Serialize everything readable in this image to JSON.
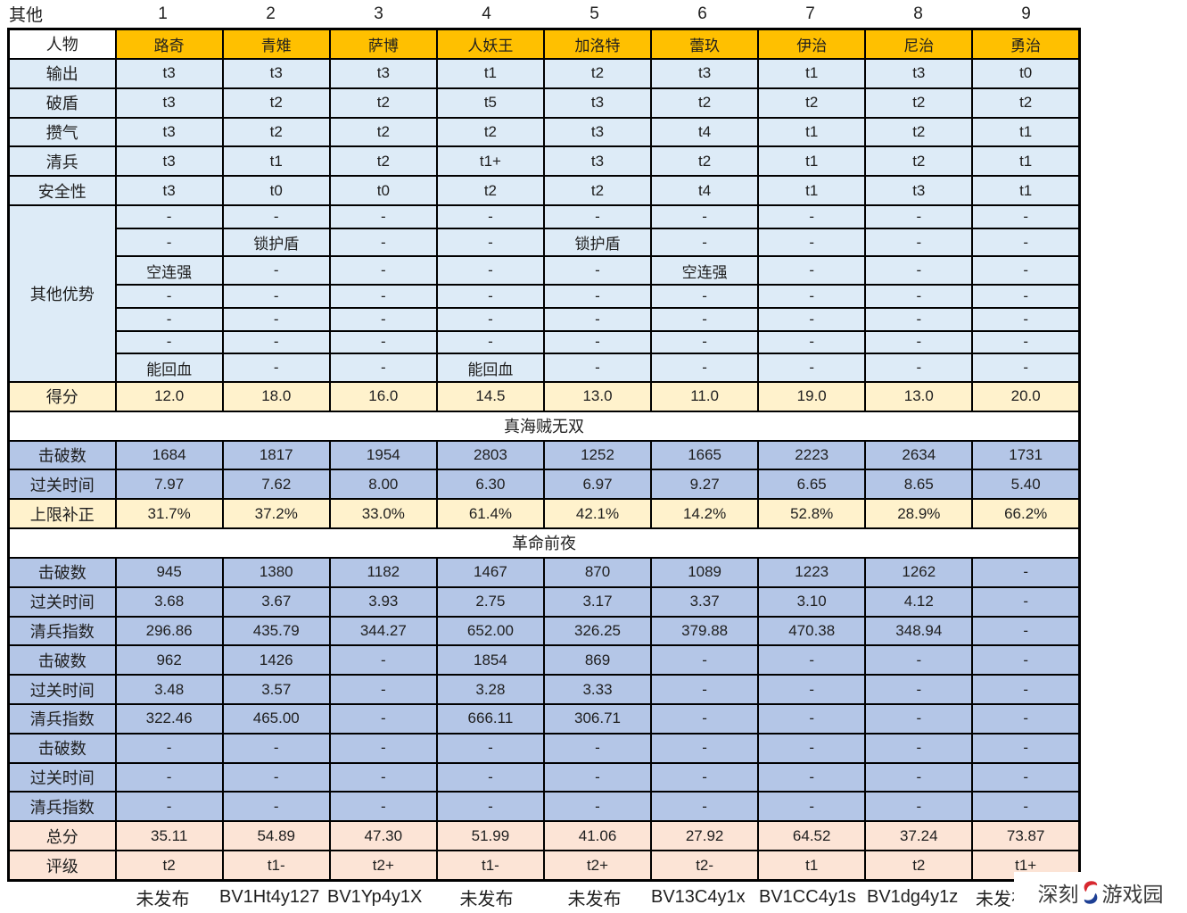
{
  "watermark": {
    "left": "深刻",
    "right": "游戏园"
  },
  "colors": {
    "header_orange": "#FFC000",
    "row_light_blue": "#DDEBF7",
    "row_medium_blue": "#B4C6E7",
    "row_light_yellow": "#FFF2CC",
    "row_light_pink": "#FCE4D6",
    "watermark_red": "#D7282F",
    "watermark_blue": "#1D3F94"
  },
  "chart_data": {
    "type": "table",
    "header_row": {
      "label": "其他",
      "column_numbers": [
        "1",
        "2",
        "3",
        "4",
        "5",
        "6",
        "7",
        "8",
        "9"
      ]
    },
    "character_row_label": "人物",
    "characters": [
      "路奇",
      "青雉",
      "萨博",
      "人妖王",
      "加洛特",
      "蕾玖",
      "伊治",
      "尼治",
      "勇治"
    ],
    "stat_rows": [
      {
        "label": "输出",
        "values": [
          "t3",
          "t3",
          "t3",
          "t1",
          "t2",
          "t3",
          "t1",
          "t3",
          "t0"
        ]
      },
      {
        "label": "破盾",
        "values": [
          "t3",
          "t2",
          "t2",
          "t5",
          "t3",
          "t2",
          "t2",
          "t2",
          "t2"
        ]
      },
      {
        "label": "攒气",
        "values": [
          "t3",
          "t2",
          "t2",
          "t2",
          "t3",
          "t4",
          "t1",
          "t2",
          "t1"
        ]
      },
      {
        "label": "清兵",
        "values": [
          "t3",
          "t1",
          "t2",
          "t1+",
          "t3",
          "t2",
          "t1",
          "t2",
          "t1"
        ]
      },
      {
        "label": "安全性",
        "values": [
          "t3",
          "t0",
          "t0",
          "t2",
          "t2",
          "t4",
          "t1",
          "t3",
          "t1"
        ]
      }
    ],
    "other_advantages": {
      "label": "其他优势",
      "rows": [
        [
          "-",
          "-",
          "-",
          "-",
          "-",
          "-",
          "-",
          "-",
          "-"
        ],
        [
          "-",
          "锁护盾",
          "-",
          "-",
          "锁护盾",
          "-",
          "-",
          "-",
          "-"
        ],
        [
          "空连强",
          "-",
          "-",
          "-",
          "-",
          "空连强",
          "-",
          "-",
          "-"
        ],
        [
          "-",
          "-",
          "-",
          "-",
          "-",
          "-",
          "-",
          "-",
          "-"
        ],
        [
          "-",
          "-",
          "-",
          "-",
          "-",
          "-",
          "-",
          "-",
          "-"
        ],
        [
          "-",
          "-",
          "-",
          "-",
          "-",
          "-",
          "-",
          "-",
          "-"
        ],
        [
          "能回血",
          "-",
          "-",
          "能回血",
          "-",
          "-",
          "-",
          "-",
          "-"
        ]
      ]
    },
    "score_row": {
      "label": "得分",
      "values": [
        "12.0",
        "18.0",
        "16.0",
        "14.5",
        "13.0",
        "11.0",
        "19.0",
        "13.0",
        "20.0"
      ]
    },
    "sections": [
      {
        "title": "真海贼无双",
        "rows": [
          {
            "label": "击破数",
            "style": "mblue",
            "values": [
              "1684",
              "1817",
              "1954",
              "2803",
              "1252",
              "1665",
              "2223",
              "2634",
              "1731"
            ]
          },
          {
            "label": "过关时间",
            "style": "mblue",
            "values": [
              "7.97",
              "7.62",
              "8.00",
              "6.30",
              "6.97",
              "9.27",
              "6.65",
              "8.65",
              "5.40"
            ]
          },
          {
            "label": "上限补正",
            "style": "yellow",
            "values": [
              "31.7%",
              "37.2%",
              "33.0%",
              "61.4%",
              "42.1%",
              "14.2%",
              "52.8%",
              "28.9%",
              "66.2%"
            ]
          }
        ]
      },
      {
        "title": "革命前夜",
        "groups": [
          [
            {
              "label": "击破数",
              "values": [
                "945",
                "1380",
                "1182",
                "1467",
                "870",
                "1089",
                "1223",
                "1262",
                "-"
              ]
            },
            {
              "label": "过关时间",
              "values": [
                "3.68",
                "3.67",
                "3.93",
                "2.75",
                "3.17",
                "3.37",
                "3.10",
                "4.12",
                "-"
              ]
            },
            {
              "label": "清兵指数",
              "values": [
                "296.86",
                "435.79",
                "344.27",
                "652.00",
                "326.25",
                "379.88",
                "470.38",
                "348.94",
                "-"
              ]
            }
          ],
          [
            {
              "label": "击破数",
              "values": [
                "962",
                "1426",
                "-",
                "1854",
                "869",
                "-",
                "-",
                "-",
                "-"
              ]
            },
            {
              "label": "过关时间",
              "values": [
                "3.48",
                "3.57",
                "-",
                "3.28",
                "3.33",
                "-",
                "-",
                "-",
                "-"
              ]
            },
            {
              "label": "清兵指数",
              "values": [
                "322.46",
                "465.00",
                "-",
                "666.11",
                "306.71",
                "-",
                "-",
                "-",
                "-"
              ]
            }
          ],
          [
            {
              "label": "击破数",
              "values": [
                "-",
                "-",
                "-",
                "-",
                "-",
                "-",
                "-",
                "-",
                "-"
              ]
            },
            {
              "label": "过关时间",
              "values": [
                "-",
                "-",
                "-",
                "-",
                "-",
                "-",
                "-",
                "-",
                "-"
              ]
            },
            {
              "label": "清兵指数",
              "values": [
                "-",
                "-",
                "-",
                "-",
                "-",
                "-",
                "-",
                "-",
                "-"
              ]
            }
          ]
        ]
      }
    ],
    "total_row": {
      "label": "总分",
      "values": [
        "35.11",
        "54.89",
        "47.30",
        "51.99",
        "41.06",
        "27.92",
        "64.52",
        "37.24",
        "73.87"
      ]
    },
    "grade_row": {
      "label": "评级",
      "values": [
        "t2",
        "t1-",
        "t2+",
        "t1-",
        "t2+",
        "t2-",
        "t1",
        "t2",
        "t1+"
      ]
    },
    "bottom_links": [
      "未发布",
      "BV1Ht4y127",
      "BV1Yp4y1X",
      "未发布",
      "未发布",
      "BV13C4y1x",
      "BV1CC4y1s",
      "BV1dg4y1z",
      "未发布"
    ]
  }
}
